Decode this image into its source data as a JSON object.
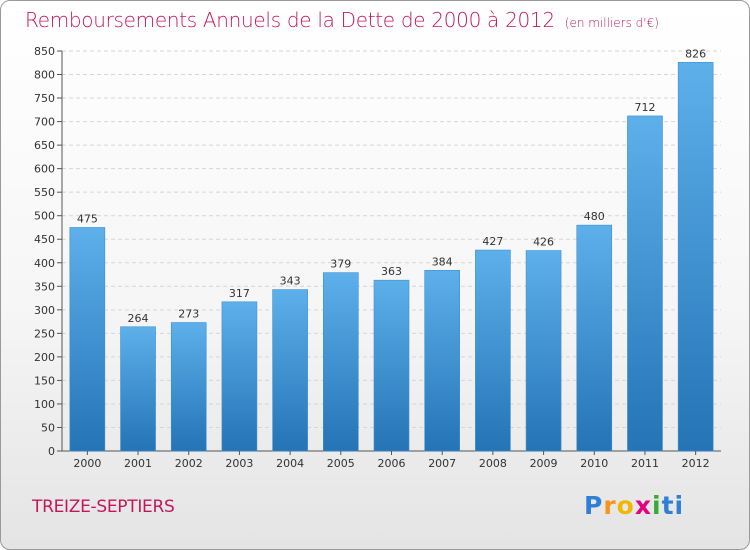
{
  "title": "Remboursements Annuels de la Dette de 2000 à 2012",
  "unit_note": "(en milliers d'€)",
  "commune": "TREIZE-SEPTIERS",
  "logo": {
    "letters": [
      "P",
      "r",
      "o",
      "x",
      "i",
      "t",
      "i"
    ],
    "colors": [
      "#2f7fd6",
      "#f7941d",
      "#f2b705",
      "#e5007e",
      "#3aa935",
      "#2f7fd6",
      "#2f7fd6"
    ]
  },
  "colors": {
    "bar_top": "#5db0ea",
    "bar_bottom": "#2474b6",
    "accent": "#c2185b"
  },
  "chart_data": {
    "type": "bar",
    "title": "Remboursements Annuels de la Dette de 2000 à 2012",
    "ylabel": "en milliers d'€",
    "xlabel": "",
    "categories": [
      "2000",
      "2001",
      "2002",
      "2003",
      "2004",
      "2005",
      "2006",
      "2007",
      "2008",
      "2009",
      "2010",
      "2011",
      "2012"
    ],
    "values": [
      475,
      264,
      273,
      317,
      343,
      379,
      363,
      384,
      427,
      426,
      480,
      712,
      826
    ],
    "ylim": [
      0,
      850
    ],
    "ytick_step": 50,
    "grid": true
  }
}
